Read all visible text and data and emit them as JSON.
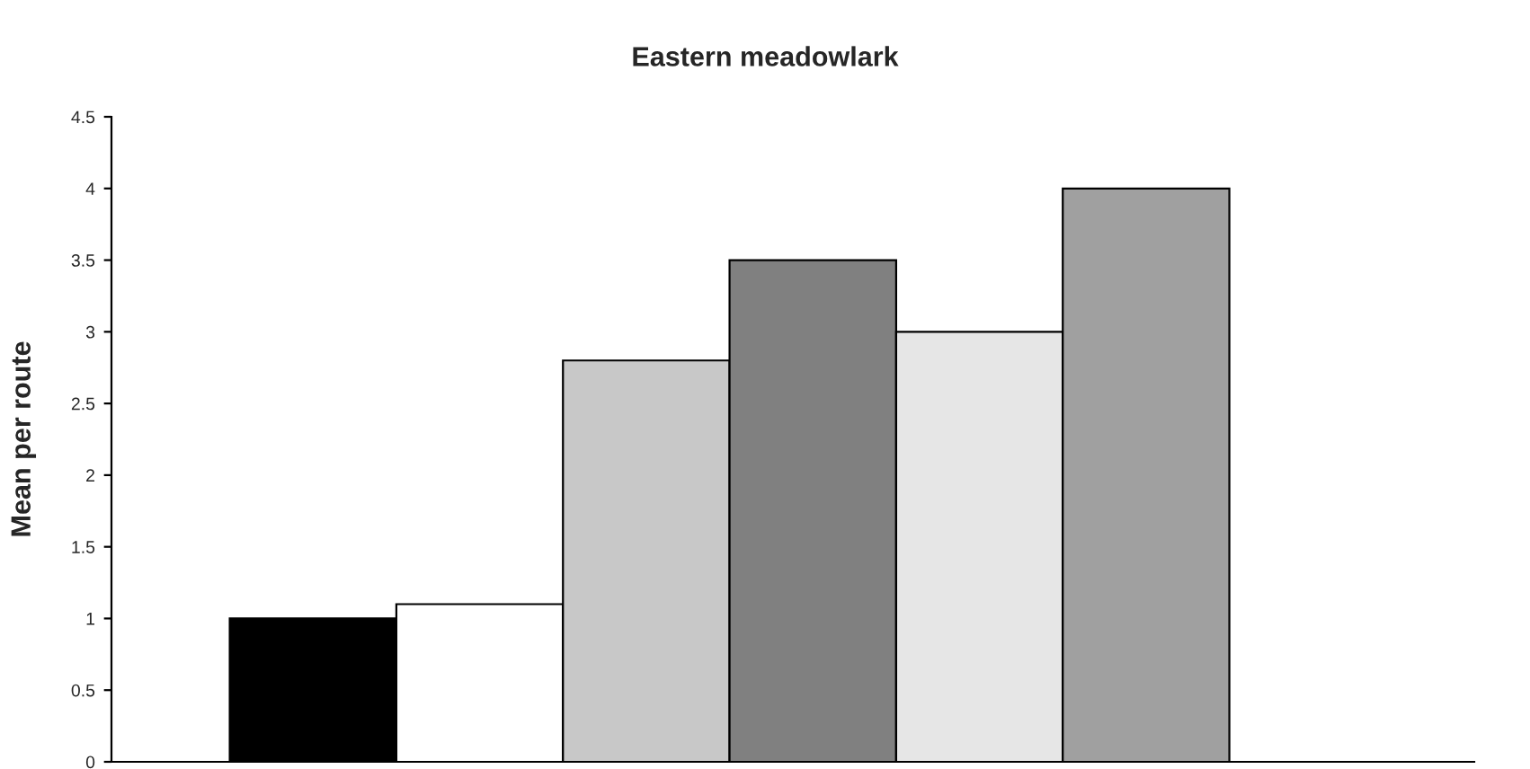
{
  "chart_data": {
    "type": "bar",
    "title": "Eastern meadowlark",
    "ylabel": "Mean per route",
    "categories": [
      null,
      null,
      null,
      null,
      null,
      null
    ],
    "values": [
      1.0,
      1.1,
      2.8,
      3.5,
      3.0,
      4.0
    ],
    "colors": [
      "#000000",
      "#ffffff",
      "#c8c8c8",
      "#808080",
      "#e6e6e6",
      "#a0a0a0"
    ],
    "ylim": [
      0,
      4.5
    ],
    "yticks": [
      0,
      0.5,
      1,
      1.5,
      2,
      2.5,
      3,
      3.5,
      4,
      4.5
    ],
    "grid": false
  }
}
